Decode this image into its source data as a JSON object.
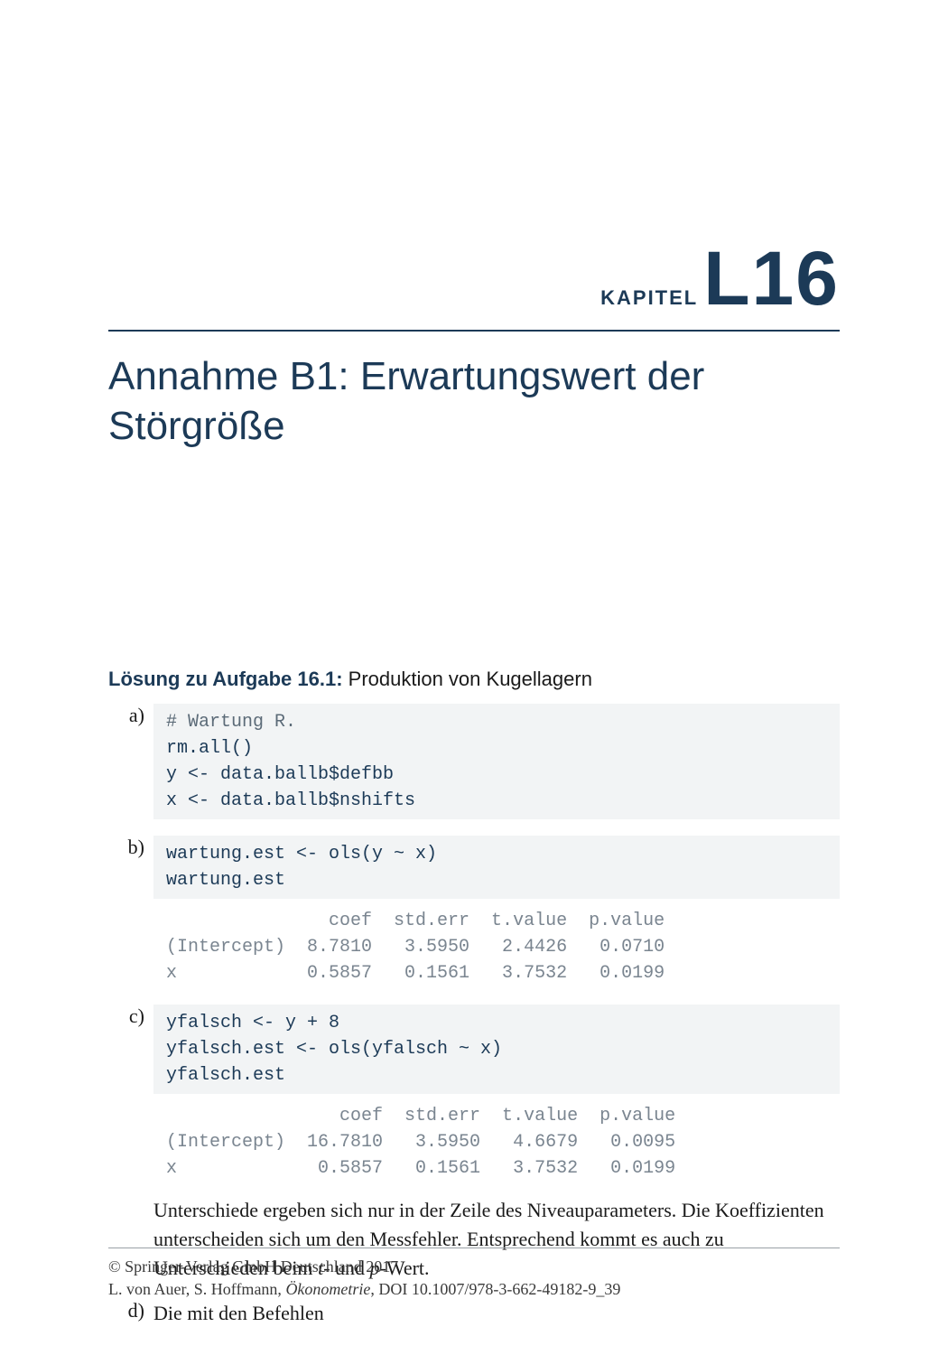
{
  "chapter": {
    "kapitel_label": "KAPITEL",
    "code": "L16",
    "title": "Annahme B1: Erwartungswert der Störgröße"
  },
  "solution_heading": {
    "prefix_bold": "Lösung zu Aufgabe 16.1:",
    "title": " Produktion von Kugellagern"
  },
  "items": {
    "a": {
      "label": "a)",
      "code": [
        "# Wartung R.",
        "rm.all()",
        "y <- data.ballb$defbb",
        "x <- data.ballb$nshifts"
      ]
    },
    "b": {
      "label": "b)",
      "code": [
        "wartung.est <- ols(y ~ x)",
        "wartung.est"
      ],
      "output": [
        "               coef  std.err  t.value  p.value",
        "(Intercept)  8.7810   3.5950   2.4426   0.0710",
        "x            0.5857   0.1561   3.7532   0.0199"
      ]
    },
    "c": {
      "label": "c)",
      "code": [
        "yfalsch <- y + 8",
        "yfalsch.est <- ols(yfalsch ~ x)",
        "yfalsch.est"
      ],
      "output": [
        "                coef  std.err  t.value  p.value",
        "(Intercept)  16.7810   3.5950   4.6679   0.0095",
        "x             0.5857   0.1561   3.7532   0.0199"
      ],
      "para_parts": {
        "p1": "Unterschiede ergeben sich nur in der Zeile des Niveauparameters. Die Koeffi­zienten unterscheiden sich um den Messfehler. Entsprechend kommt es auch zu Unterschieden beim ",
        "t": "t",
        "sep": "- und ",
        "p": "p",
        "p2": "-Wert."
      }
    },
    "d": {
      "label": "d)",
      "text": "Die mit den Befehlen"
    }
  },
  "footer": {
    "line1": "© Springer-Verlag GmbH Deutschland 2017",
    "line2_pre": "L. von Auer, S. Hoffmann, ",
    "line2_ital": "Ökonometrie",
    "line2_post": ", DOI 10.1007/978-3-662-49182-9_39"
  },
  "style": {
    "colors": {
      "heading": "#1c3a57",
      "code_bg": "#f2f4f5",
      "code_fg": "#1c3a57",
      "output_fg": "#7a8590",
      "text": "#1a1a1a",
      "rule": "#1c3a57",
      "footer_rule": "#9aa0a6"
    },
    "fonts": {
      "mono": "Courier New",
      "serif": "Georgia / Times",
      "sans": "Segoe UI / Arial"
    },
    "sizes": {
      "kapitel_label": 22,
      "chapter_code": 84,
      "chapter_title": 44,
      "solution_heading": 22,
      "body": 22,
      "code": 20,
      "footer": 18
    }
  }
}
